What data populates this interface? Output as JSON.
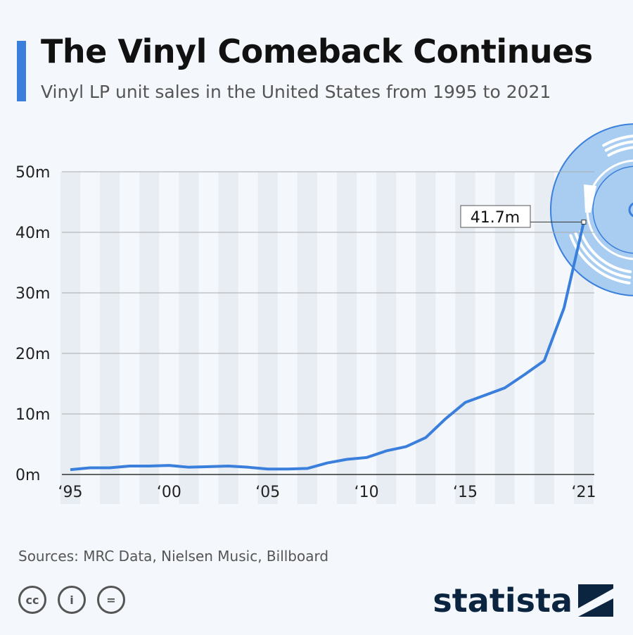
{
  "title": "The Vinyl Comeback Continues",
  "subtitle": "Vinyl LP unit sales in the United States from 1995 to 2021",
  "source": "Sources: MRC Data, Nielsen Music, Billboard",
  "brand": "statista",
  "license_icons": [
    "cc-icon",
    "attribution-icon",
    "no-derivatives-icon"
  ],
  "colors": {
    "line": "#3a7fdc",
    "accent": "#3a7fdc",
    "disc": "#a8cdf0"
  },
  "chart_data": {
    "type": "line",
    "x": [
      1995,
      1996,
      1997,
      1998,
      1999,
      2000,
      2001,
      2002,
      2003,
      2004,
      2005,
      2006,
      2007,
      2008,
      2009,
      2010,
      2011,
      2012,
      2013,
      2014,
      2015,
      2016,
      2017,
      2018,
      2019,
      2020,
      2021
    ],
    "series": [
      {
        "values": [
          0.8,
          1.1,
          1.1,
          1.4,
          1.4,
          1.5,
          1.2,
          1.3,
          1.4,
          1.2,
          0.9,
          0.9,
          1.0,
          1.9,
          2.5,
          2.8,
          3.9,
          4.6,
          6.1,
          9.2,
          11.9,
          13.1,
          14.3,
          16.5,
          18.8,
          27.5,
          41.7
        ]
      }
    ],
    "ylim": [
      0,
      50
    ],
    "yticks": [
      "0m",
      "10m",
      "20m",
      "30m",
      "40m",
      "50m"
    ],
    "xticks": [
      {
        "year": 1995,
        "label": "‘95"
      },
      {
        "year": 2000,
        "label": "‘00"
      },
      {
        "year": 2005,
        "label": "‘05"
      },
      {
        "year": 2010,
        "label": "‘10"
      },
      {
        "year": 2015,
        "label": "‘15"
      },
      {
        "year": 2021,
        "label": "‘21"
      }
    ],
    "annotation": {
      "year": 2021,
      "label": "41.7m"
    },
    "grid": true
  }
}
